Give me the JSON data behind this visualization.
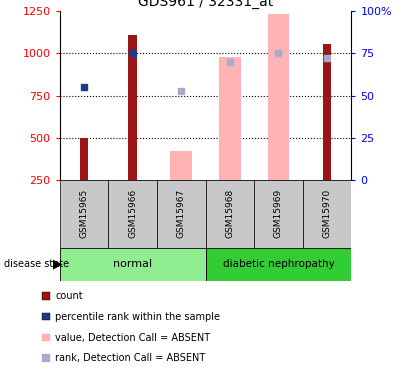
{
  "title": "GDS961 / 32331_at",
  "samples": [
    "GSM15965",
    "GSM15966",
    "GSM15967",
    "GSM15968",
    "GSM15969",
    "GSM15970"
  ],
  "left_ylim": [
    250,
    1250
  ],
  "right_ylim": [
    0,
    100
  ],
  "left_ticks": [
    250,
    500,
    750,
    1000,
    1250
  ],
  "right_ticks": [
    0,
    25,
    50,
    75,
    100
  ],
  "right_tick_labels": [
    "0",
    "25",
    "50",
    "75",
    "100%"
  ],
  "red_bars": {
    "GSM15965": 500,
    "GSM15966": 1110,
    "GSM15970": 1055
  },
  "pink_bars": {
    "GSM15967": 420,
    "GSM15968": 980,
    "GSM15969": 1235
  },
  "blue_squares": {
    "GSM15965": 800,
    "GSM15966": 1000
  },
  "light_blue_squares": {
    "GSM15967": 775,
    "GSM15968": 948,
    "GSM15969": 1000,
    "GSM15970": 975
  },
  "red_color": "#9B1515",
  "pink_color": "#FFB3B3",
  "blue_color": "#1A3A8A",
  "light_blue_color": "#AAAACC",
  "normal_color": "#90EE90",
  "diabetic_color": "#32CD32",
  "label_bg_color": "#C8C8C8",
  "legend_items": [
    {
      "label": "count",
      "color": "#9B1515"
    },
    {
      "label": "percentile rank within the sample",
      "color": "#1A3A8A"
    },
    {
      "label": "value, Detection Call = ABSENT",
      "color": "#FFB3B3"
    },
    {
      "label": "rank, Detection Call = ABSENT",
      "color": "#AAAACC"
    }
  ]
}
